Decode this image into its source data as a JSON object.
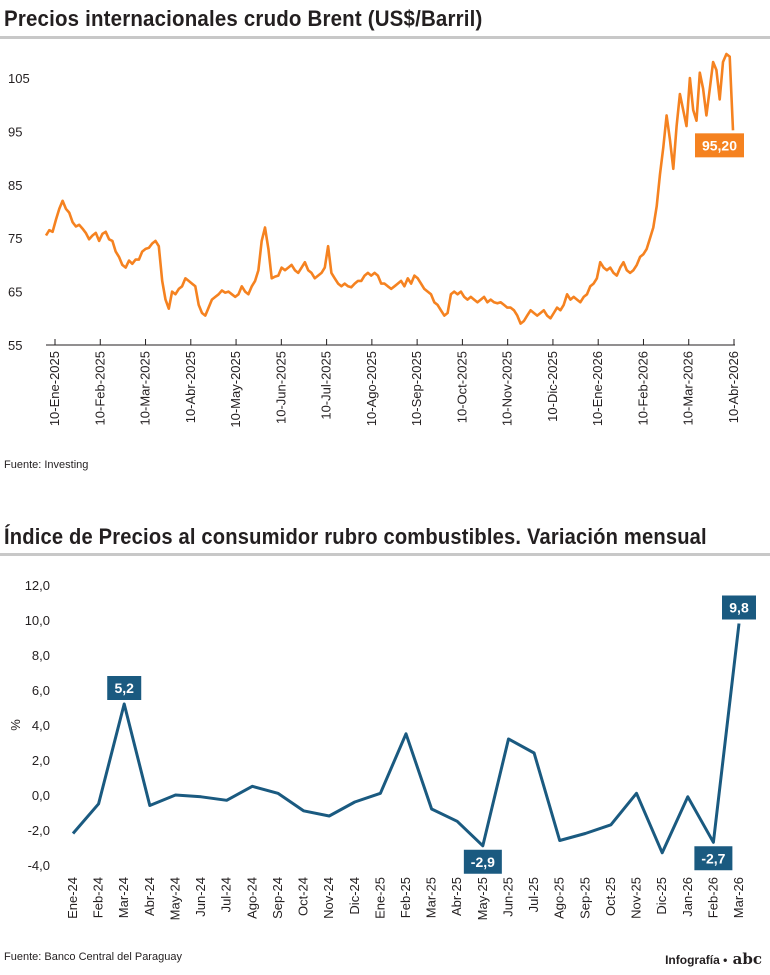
{
  "chart_data": [
    {
      "type": "line",
      "title": "Precios internacionales crudo Brent (US$/Barril)",
      "source": "Fuente: Investing",
      "color": "#f58220",
      "ylim": [
        55,
        110
      ],
      "yticks": [
        "55",
        "65",
        "75",
        "85",
        "95",
        "105"
      ],
      "x_tick_labels": [
        "10-Ene-2025",
        "10-Feb-2025",
        "10-Mar-2025",
        "10-Abr-2025",
        "10-May-2025",
        "10-Jun-2025",
        "10-Jul-2025",
        "10-Ago-2025",
        "10-Sep-2025",
        "10-Oct-2025",
        "10-Nov-2025",
        "10-Dic-2025",
        "10-Ene-2026",
        "10-Feb-2026",
        "10-Mar-2026",
        "10-Abr-2026"
      ],
      "grid": false,
      "last_value_label": "95,20",
      "series": [
        {
          "values": [
            75.5,
            76.5,
            76.2,
            78.5,
            80.5,
            82.0,
            80.5,
            79.8,
            78.0,
            77.2,
            77.5,
            76.8,
            76.0,
            74.8,
            75.5,
            76.0,
            74.5,
            75.8,
            76.2,
            74.8,
            74.5,
            72.5,
            71.5,
            70.0,
            69.5,
            70.8,
            70.2,
            71.0,
            71.0,
            72.5,
            73.0,
            73.2,
            74.0,
            74.5,
            73.5,
            67.0,
            63.5,
            61.8,
            65.0,
            64.5,
            65.5,
            66.0,
            67.5,
            67.0,
            66.5,
            66.0,
            62.5,
            61.0,
            60.5,
            62.0,
            63.5,
            64.0,
            64.5,
            65.2,
            64.8,
            65.0,
            64.5,
            64.0,
            64.5,
            66.0,
            65.0,
            64.5,
            66.0,
            67.0,
            69.0,
            74.5,
            77.0,
            73.0,
            67.5,
            67.8,
            68.0,
            69.5,
            69.0,
            69.5,
            70.0,
            69.0,
            68.5,
            69.5,
            70.5,
            69.0,
            68.5,
            67.5,
            68.0,
            68.5,
            69.5,
            73.5,
            68.5,
            67.5,
            66.5,
            66.0,
            66.5,
            66.0,
            65.8,
            66.5,
            67.0,
            67.0,
            68.0,
            68.5,
            68.0,
            68.5,
            68.0,
            66.5,
            66.5,
            66.0,
            65.5,
            66.0,
            66.5,
            67.0,
            66.0,
            67.5,
            66.5,
            68.0,
            67.5,
            66.5,
            65.5,
            65.0,
            64.5,
            63.0,
            62.5,
            61.5,
            60.5,
            61.0,
            64.5,
            65.0,
            64.5,
            65.0,
            64.0,
            63.5,
            64.0,
            63.5,
            63.0,
            63.5,
            64.0,
            63.0,
            63.5,
            63.0,
            62.8,
            63.0,
            62.5,
            62.0,
            62.0,
            61.5,
            60.5,
            59.0,
            59.5,
            60.5,
            61.5,
            61.0,
            60.5,
            61.0,
            61.5,
            60.5,
            60.0,
            61.0,
            62.0,
            61.5,
            62.5,
            64.5,
            63.5,
            64.0,
            63.5,
            63.0,
            64.0,
            64.5,
            66.0,
            66.5,
            67.5,
            70.5,
            69.5,
            69.0,
            69.5,
            68.5,
            68.0,
            69.5,
            70.5,
            69.0,
            68.5,
            69.0,
            70.0,
            71.5,
            72.0,
            73.0,
            75.0,
            77.0,
            81.0,
            87.0,
            92.0,
            98.0,
            93.5,
            88.0,
            96.0,
            102.0,
            99.0,
            96.0,
            105.0,
            99.0,
            97.0,
            106.0,
            103.0,
            98.0,
            103.0,
            108.0,
            106.5,
            101.0,
            108.0,
            109.5,
            109.0,
            95.2
          ]
        }
      ]
    },
    {
      "type": "line",
      "title": "Índice de Precios al consumidor rubro combustibles. Variación mensual",
      "source": "Fuente: Banco Central del Paraguay",
      "color": "#1a5a80",
      "ylabel": "%",
      "ylim": [
        -4.0,
        12.0
      ],
      "yticks": [
        "-4,0",
        "-2,0",
        "0,0",
        "2,0",
        "4,0",
        "6,0",
        "8,0",
        "10,0",
        "12,0"
      ],
      "categories": [
        "Ene-24",
        "Feb-24",
        "Mar-24",
        "Abr-24",
        "May-24",
        "Jun-24",
        "Jul-24",
        "Ago-24",
        "Sep-24",
        "Oct-24",
        "Nov-24",
        "Dic-24",
        "Ene-25",
        "Feb-25",
        "Mar-25",
        "Abr-25",
        "May-25",
        "Jun-25",
        "Jul-25",
        "Ago-25",
        "Sep-25",
        "Oct-25",
        "Nov-25",
        "Dic-25",
        "Jan-26",
        "Feb-26",
        "Mar-26"
      ],
      "values": [
        -2.2,
        -0.5,
        5.2,
        -0.6,
        0.0,
        -0.1,
        -0.3,
        0.5,
        0.1,
        -0.9,
        -1.2,
        -0.4,
        0.1,
        3.5,
        -0.8,
        -1.5,
        -2.9,
        3.2,
        2.4,
        -2.6,
        -2.2,
        -1.7,
        0.1,
        -3.3,
        -0.1,
        -2.7,
        9.8
      ],
      "grid": false,
      "data_labels": [
        {
          "category": "Mar-24",
          "text": "5,2"
        },
        {
          "category": "May-25",
          "text": "-2,9"
        },
        {
          "category": "Feb-26",
          "text": "-2,7"
        },
        {
          "category": "Mar-26",
          "text": "9,8"
        }
      ]
    }
  ],
  "credit": {
    "label": "Infografía",
    "separator": "•",
    "logo": "abc"
  }
}
